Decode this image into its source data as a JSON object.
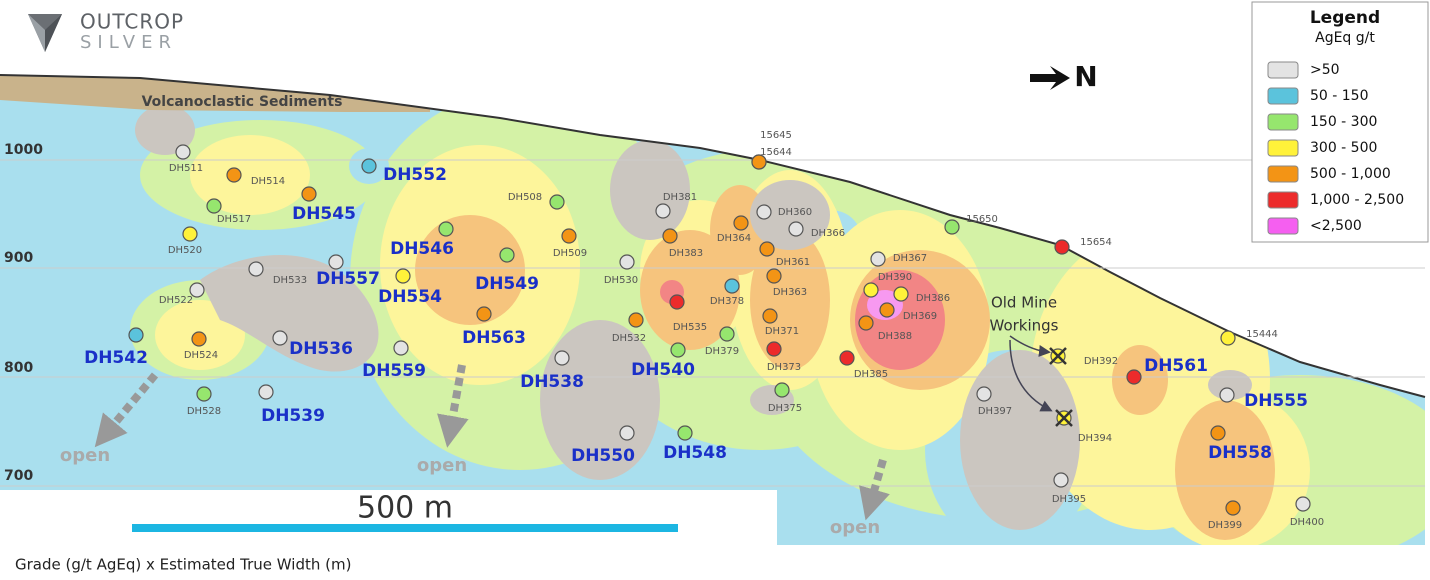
{
  "logo": {
    "name": "OUTCROP",
    "subname": "SILVER"
  },
  "legend": {
    "title": "Legend",
    "subtitle": "AgEq g/t",
    "items": [
      {
        "label": ">50",
        "color": "#e3e3e3"
      },
      {
        "label": "50 - 150",
        "color": "#5bc3dc"
      },
      {
        "label": "150 - 300",
        "color": "#96e66e"
      },
      {
        "label": "300 - 500",
        "color": "#fff23a"
      },
      {
        "label": "500 - 1,000",
        "color": "#f39415"
      },
      {
        "label": "1,000 - 2,500",
        "color": "#ec2b2b"
      },
      {
        "label": "<2,500",
        "color": "#f55ff0"
      }
    ]
  },
  "north": "N",
  "elevations": [
    1000,
    900,
    800,
    700
  ],
  "labels": {
    "sediments": "Volcanoclastic Sediments",
    "workings": [
      "Old Mine",
      "Workings"
    ],
    "open": [
      "open",
      "open",
      "open"
    ]
  },
  "drill_holes": [
    {
      "label": "DH511",
      "color": "#e3e3e3"
    },
    {
      "label": "DH514",
      "color": "#f39415"
    },
    {
      "label": "DH545",
      "color": "#f39415"
    },
    {
      "label": "DH552",
      "color": "#5bc3dc"
    },
    {
      "label": "DH517",
      "color": "#96e66e"
    },
    {
      "label": "DH520",
      "color": "#fff23a"
    },
    {
      "label": "DH546",
      "color": "#96e66e"
    },
    {
      "label": "DH557",
      "color": "#e3e3e3"
    },
    {
      "label": "DH533",
      "color": "#e3e3e3"
    },
    {
      "label": "DH554",
      "color": "#fff23a"
    },
    {
      "label": "DH549",
      "color": "#96e66e"
    },
    {
      "label": "DH522",
      "color": "#e3e3e3"
    },
    {
      "label": "DH542",
      "color": "#5bc3dc"
    },
    {
      "label": "DH524",
      "color": "#f39415"
    },
    {
      "label": "DH536",
      "color": "#e3e3e3"
    },
    {
      "label": "DH563",
      "color": "#f39415"
    },
    {
      "label": "DH559",
      "color": "#e3e3e3"
    },
    {
      "label": "DH539",
      "color": "#e3e3e3"
    },
    {
      "label": "DH528",
      "color": "#96e66e"
    },
    {
      "label": "DH508",
      "color": "#96e66e"
    },
    {
      "label": "DH509",
      "color": "#f39415"
    },
    {
      "label": "DH530",
      "color": "#e3e3e3"
    },
    {
      "label": "DH381",
      "color": "#e3e3e3"
    },
    {
      "label": "DH383",
      "color": "#f39415"
    },
    {
      "label": "DH364",
      "color": "#f39415"
    },
    {
      "label": "DH360",
      "color": "#e3e3e3"
    },
    {
      "label": "DH366",
      "color": "#e3e3e3"
    },
    {
      "label": "DH361",
      "color": "#f39415"
    },
    {
      "label": "DH378",
      "color": "#5bc3dc"
    },
    {
      "label": "DH363",
      "color": "#f39415"
    },
    {
      "label": "DH535",
      "color": "#ec2b2b"
    },
    {
      "label": "DH532",
      "color": "#f39415"
    },
    {
      "label": "DH371",
      "color": "#f39415"
    },
    {
      "label": "DH379",
      "color": "#96e66e"
    },
    {
      "label": "DH373",
      "color": "#ec2b2b"
    },
    {
      "label": "DH540",
      "color": "#96e66e"
    },
    {
      "label": "DH538",
      "color": "#e3e3e3"
    },
    {
      "label": "DH375",
      "color": "#96e66e"
    },
    {
      "label": "DH550",
      "color": "#e3e3e3"
    },
    {
      "label": "DH548",
      "color": "#96e66e"
    },
    {
      "label": "15645",
      "color": "#f39415"
    },
    {
      "label": "15644",
      "color": "#f39415"
    },
    {
      "label": "15650",
      "color": "#96e66e"
    },
    {
      "label": "15654",
      "color": "#ec2b2b"
    },
    {
      "label": "DH367",
      "color": "#e3e3e3"
    },
    {
      "label": "DH390",
      "color": "#fff23a"
    },
    {
      "label": "DH386",
      "color": "#fff23a"
    },
    {
      "label": "DH369",
      "color": "#f39415"
    },
    {
      "label": "DH388",
      "color": "#f39415"
    },
    {
      "label": "DH385",
      "color": "#ec2b2b"
    },
    {
      "label": "DH392",
      "color": "#fff23a"
    },
    {
      "label": "DH394",
      "color": "#fff23a"
    },
    {
      "label": "DH397",
      "color": "#e3e3e3"
    },
    {
      "label": "DH395",
      "color": "#e3e3e3"
    },
    {
      "label": "DH561",
      "color": "#ec2b2b"
    },
    {
      "label": "DH555",
      "color": "#e3e3e3"
    },
    {
      "label": "15444",
      "color": "#fff23a"
    },
    {
      "label": "DH558",
      "color": "#f39415"
    },
    {
      "label": "DH399",
      "color": "#f39415"
    },
    {
      "label": "DH400",
      "color": "#e3e3e3"
    }
  ],
  "scale_bar": "500 m",
  "caption": "Grade (g/t AgEq) x Estimated True Width (m)"
}
